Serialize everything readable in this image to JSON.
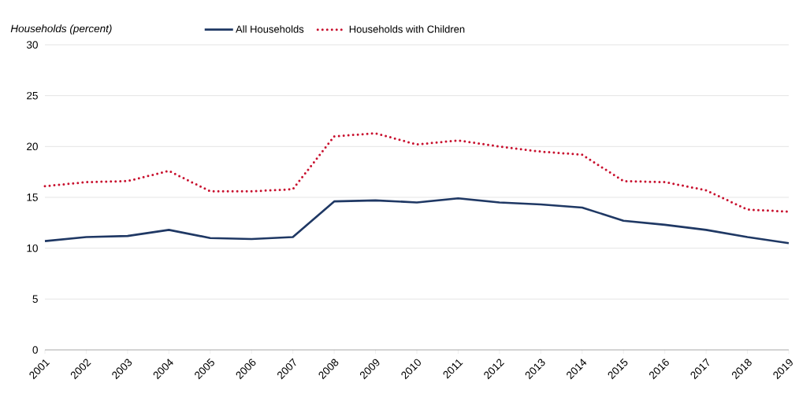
{
  "chart_data": {
    "type": "line",
    "ylabel": "Households (percent)",
    "categories": [
      "2001",
      "2002",
      "2003",
      "2004",
      "2005",
      "2006",
      "2007",
      "2008",
      "2009",
      "2010",
      "2011",
      "2012",
      "2013",
      "2014",
      "2015",
      "2016",
      "2017",
      "2018",
      "2019"
    ],
    "series": [
      {
        "name": "All Households",
        "color": "#1f3864",
        "line_style": "solid",
        "values": [
          10.7,
          11.1,
          11.2,
          11.8,
          11.0,
          10.9,
          11.1,
          14.6,
          14.7,
          14.5,
          14.9,
          14.5,
          14.3,
          14.0,
          12.7,
          12.3,
          11.8,
          11.1,
          10.5
        ]
      },
      {
        "name": "Households with Children",
        "color": "#c8102e",
        "line_style": "dotted",
        "values": [
          16.1,
          16.5,
          16.6,
          17.6,
          15.6,
          15.6,
          15.8,
          21.0,
          21.3,
          20.2,
          20.6,
          20.0,
          19.5,
          19.2,
          16.6,
          16.5,
          15.7,
          13.8,
          13.6
        ]
      }
    ],
    "ylim": [
      0,
      30
    ],
    "yticks": [
      0,
      5,
      10,
      15,
      20,
      25,
      30
    ],
    "grid": "y",
    "legend": "top",
    "marker": "none"
  }
}
